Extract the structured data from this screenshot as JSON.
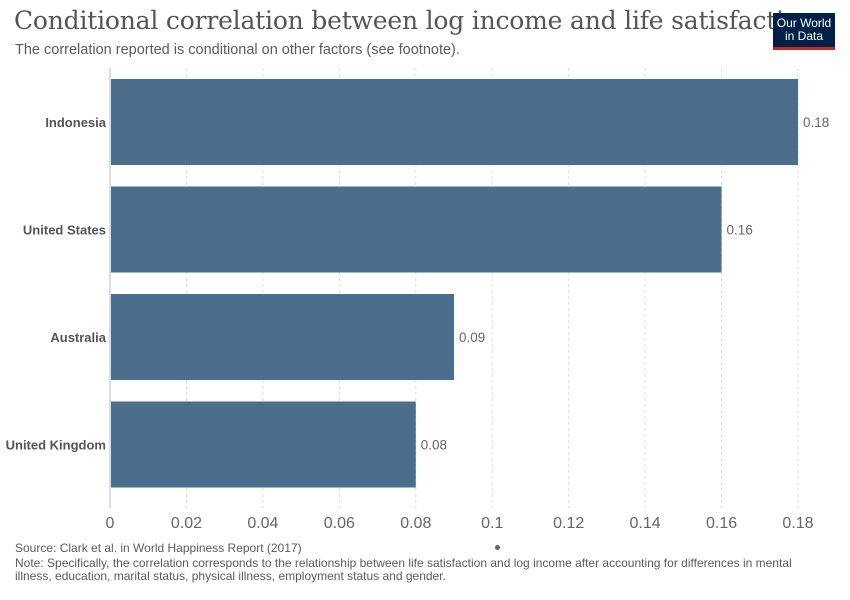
{
  "header": {
    "title": "Conditional correlation between log income and life satisfaction",
    "subtitle": "The correlation reported is conditional on other factors (see footnote)."
  },
  "logo": {
    "line1": "Our World",
    "line2": "in Data",
    "bg_color": "#002147",
    "accent_color": "#ce261e"
  },
  "chart_data": {
    "type": "bar",
    "orientation": "horizontal",
    "title": "Conditional correlation between log income and life satisfaction",
    "subtitle": "The correlation reported is conditional on other factors (see footnote).",
    "categories": [
      "Indonesia",
      "United States",
      "Australia",
      "United Kingdom"
    ],
    "values": [
      0.18,
      0.16,
      0.09,
      0.08
    ],
    "value_labels": [
      "0.18",
      "0.16",
      "0.09",
      "0.08"
    ],
    "xlim": [
      0,
      0.18
    ],
    "x_ticks": [
      0,
      0.02,
      0.04,
      0.06,
      0.08,
      0.1,
      0.12,
      0.14,
      0.16,
      0.18
    ],
    "x_tick_labels": [
      "0",
      "0.02",
      "0.04",
      "0.06",
      "0.08",
      "0.1",
      "0.12",
      "0.14",
      "0.16",
      "0.18"
    ],
    "grid": "vertical dashed",
    "legend": "none",
    "bar_color": "#4b6e8c"
  },
  "footer": {
    "source": "Source: Clark et al. in World Happiness Report (2017)",
    "note": "Note: Specifically, the correlation corresponds to the relationship between life satisfaction and log income after accounting for differences in mental illness, education, marital status, physical illness, employment status and gender."
  }
}
